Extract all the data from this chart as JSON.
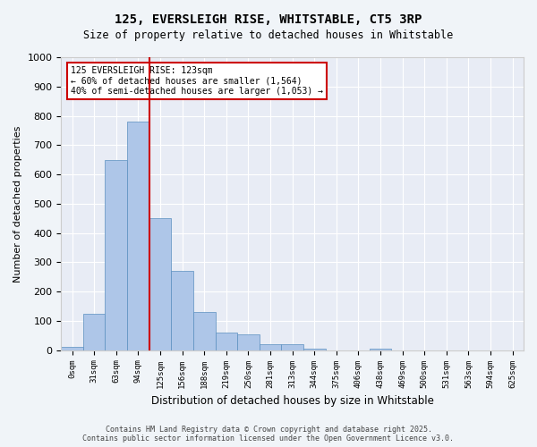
{
  "title_line1": "125, EVERSLEIGH RISE, WHITSTABLE, CT5 3RP",
  "title_line2": "Size of property relative to detached houses in Whitstable",
  "xlabel": "Distribution of detached houses by size in Whitstable",
  "ylabel": "Number of detached properties",
  "bar_color": "#aec6e8",
  "bar_edge_color": "#5a8fc0",
  "background_color": "#e8ecf5",
  "grid_color": "#ffffff",
  "annotation_box_color": "#cc0000",
  "vline_color": "#cc0000",
  "categories": [
    "0sqm",
    "31sqm",
    "63sqm",
    "94sqm",
    "125sqm",
    "156sqm",
    "188sqm",
    "219sqm",
    "250sqm",
    "281sqm",
    "313sqm",
    "344sqm",
    "375sqm",
    "406sqm",
    "438sqm",
    "469sqm",
    "500sqm",
    "531sqm",
    "563sqm",
    "594sqm",
    "625sqm"
  ],
  "bar_values": [
    10,
    125,
    650,
    780,
    450,
    270,
    130,
    60,
    55,
    20,
    20,
    5,
    0,
    0,
    5,
    0,
    0,
    0,
    0,
    0,
    0
  ],
  "vline_x": 3.5,
  "annotation_text": "125 EVERSLEIGH RISE: 123sqm\n← 60% of detached houses are smaller (1,564)\n40% of semi-detached houses are larger (1,053) →",
  "ylim": [
    0,
    1000
  ],
  "yticks": [
    0,
    100,
    200,
    300,
    400,
    500,
    600,
    700,
    800,
    900,
    1000
  ],
  "footer_line1": "Contains HM Land Registry data © Crown copyright and database right 2025.",
  "footer_line2": "Contains public sector information licensed under the Open Government Licence v3.0.",
  "fig_facecolor": "#f0f4f8"
}
